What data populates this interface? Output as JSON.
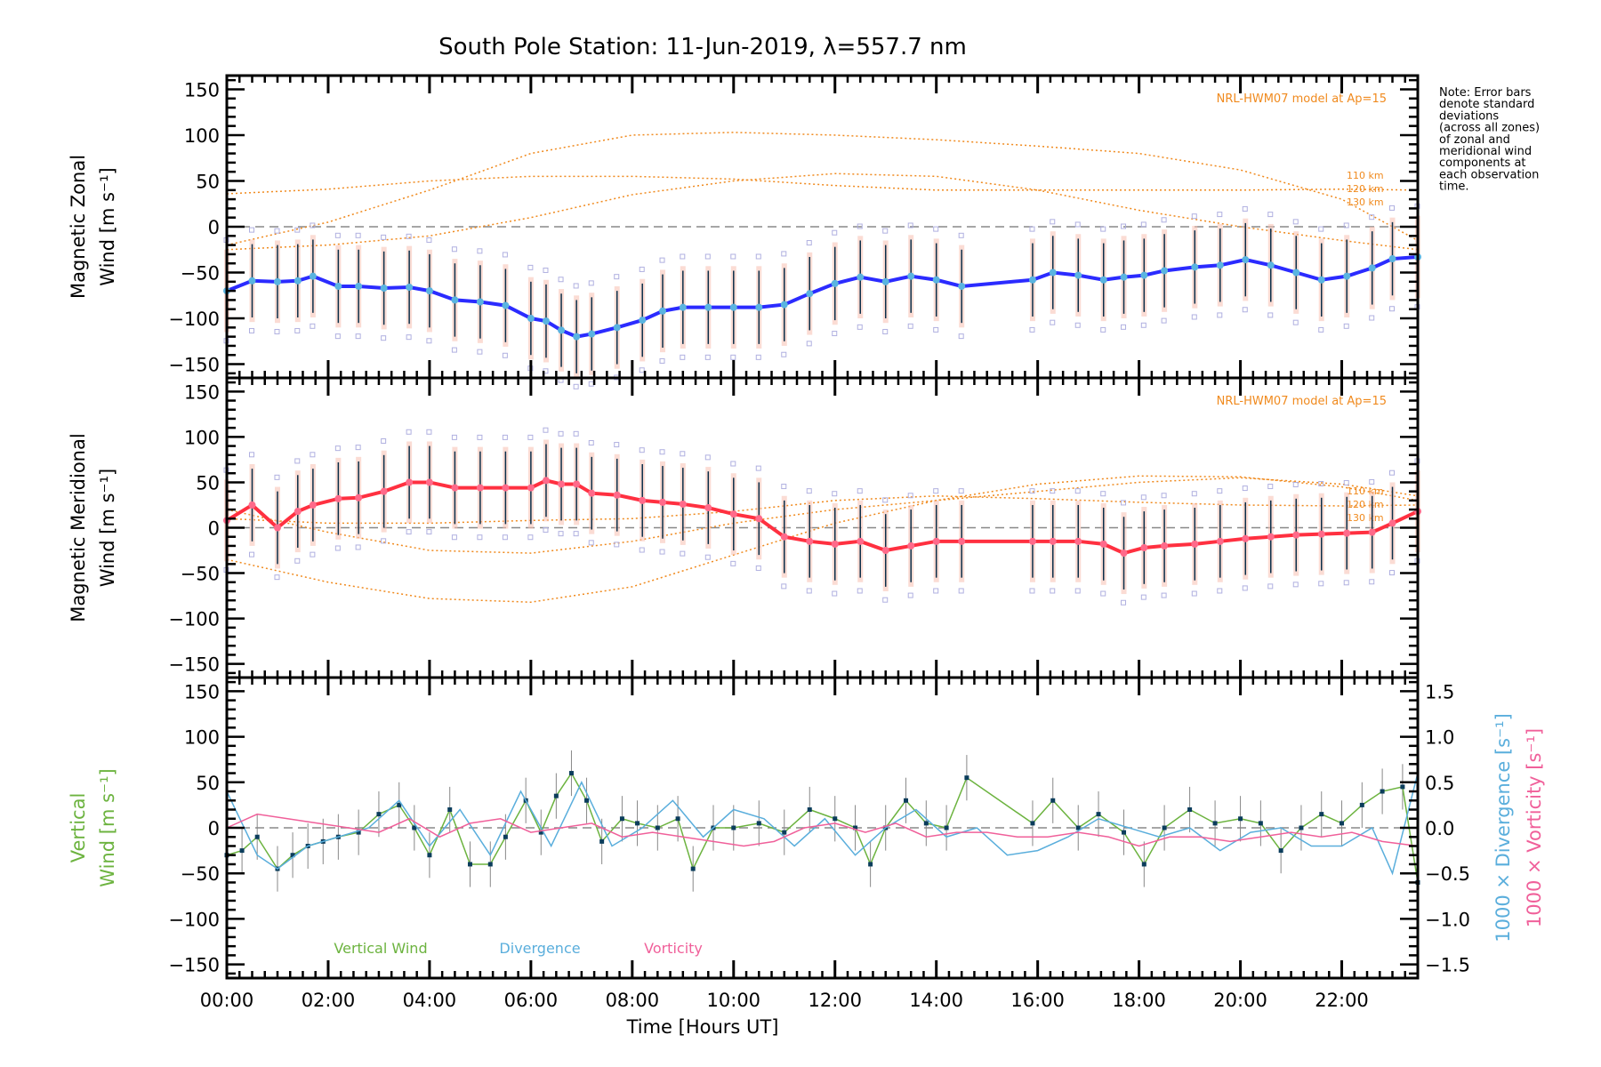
{
  "figure": {
    "title": "South Pole Station: 11-Jun-2019, λ=557.7 nm",
    "note_lines": [
      "Note: Error bars",
      "denote standard",
      "deviations",
      "(across all zones)",
      "of zonal and",
      "meridional wind",
      "components at",
      "each observation",
      "time."
    ],
    "xlabel": "Time [Hours UT]",
    "colors": {
      "zonal_line": "#2b2bff",
      "zonal_marker": "#5ab4e0",
      "meridional_line": "#ff3040",
      "meridional_marker": "#ff6a8a",
      "model": "#f08a1e",
      "vertical": "#6cb33f",
      "vertical_marker": "#0b3d5c",
      "divergence": "#5aaedc",
      "vorticity": "#f0609a",
      "errorbar": "#0b2f4a",
      "zone_boxes": "#b0b0e0",
      "zero_line": "#888888"
    }
  },
  "chart_data": [
    {
      "type": "line",
      "panel": "zonal",
      "title": "",
      "ylabel_lines": [
        "Magnetic Zonal",
        "Wind [m s⁻¹]"
      ],
      "xlabel": "",
      "xlim": [
        0,
        23.5
      ],
      "ylim": [
        -165,
        165
      ],
      "yticks": [
        150,
        100,
        50,
        0,
        -50,
        -100,
        -150
      ],
      "model_label": "NRL-HWM07 model at Ap=15",
      "model_altitudes": [
        "110 km",
        "120 km",
        "130 km"
      ],
      "model_series": [
        {
          "name": "110 km",
          "x": [
            0,
            2,
            4,
            6,
            8,
            10,
            12,
            14,
            16,
            18,
            20,
            22,
            23.5
          ],
          "y": [
            -20,
            5,
            40,
            80,
            100,
            103,
            100,
            95,
            88,
            80,
            62,
            30,
            -15
          ]
        },
        {
          "name": "120 km",
          "x": [
            0,
            2,
            4,
            6,
            8,
            10,
            12,
            14,
            16,
            18,
            20,
            22,
            23.5
          ],
          "y": [
            36,
            41,
            50,
            55,
            55,
            52,
            45,
            40,
            40,
            40,
            40,
            41,
            40
          ]
        },
        {
          "name": "130 km",
          "x": [
            0,
            2,
            4,
            6,
            8,
            10,
            12,
            14,
            16,
            18,
            20,
            22,
            23.5
          ],
          "y": [
            -25,
            -20,
            -10,
            10,
            35,
            50,
            58,
            55,
            40,
            18,
            0,
            -15,
            -25
          ]
        }
      ],
      "series": [
        {
          "name": "Zonal Wind",
          "x": [
            0,
            0.5,
            1.0,
            1.4,
            1.7,
            2.2,
            2.6,
            3.1,
            3.6,
            4.0,
            4.5,
            5.0,
            5.5,
            6.0,
            6.3,
            6.6,
            6.9,
            7.2,
            7.7,
            8.2,
            8.6,
            9.0,
            9.5,
            10.0,
            10.5,
            11.0,
            11.5,
            12.0,
            12.5,
            13.0,
            13.5,
            14.0,
            14.5,
            15.9,
            16.3,
            16.8,
            17.3,
            17.7,
            18.1,
            18.5,
            19.1,
            19.6,
            20.1,
            20.6,
            21.1,
            21.6,
            22.1,
            22.6,
            23.0,
            23.5
          ],
          "y": [
            -70,
            -59,
            -60,
            -59,
            -54,
            -65,
            -65,
            -67,
            -66,
            -70,
            -80,
            -82,
            -86,
            -100,
            -103,
            -113,
            -120,
            -117,
            -110,
            -102,
            -92,
            -88,
            -88,
            -88,
            -88,
            -85,
            -73,
            -62,
            -55,
            -60,
            -54,
            -58,
            -65,
            -58,
            -50,
            -53,
            -58,
            -55,
            -53,
            -48,
            -44,
            -42,
            -36,
            -42,
            -50,
            -58,
            -54,
            -45,
            -35,
            -33
          ]
        }
      ]
    },
    {
      "type": "line",
      "panel": "meridional",
      "title": "",
      "ylabel_lines": [
        "Magnetic Meridional",
        "Wind [m s⁻¹]"
      ],
      "xlabel": "",
      "xlim": [
        0,
        23.5
      ],
      "ylim": [
        -165,
        165
      ],
      "yticks": [
        150,
        100,
        50,
        0,
        -50,
        -100,
        -150
      ],
      "model_label": "NRL-HWM07 model at Ap=15",
      "model_altitudes": [
        "110 km",
        "120 km",
        "130 km"
      ],
      "model_series": [
        {
          "name": "110 km",
          "x": [
            0,
            2,
            4,
            6,
            8,
            10,
            12,
            14,
            16,
            18,
            20,
            22,
            23.5
          ],
          "y": [
            -35,
            -60,
            -78,
            -82,
            -65,
            -30,
            5,
            30,
            48,
            57,
            56,
            45,
            30
          ]
        },
        {
          "name": "120 km",
          "x": [
            0,
            2,
            4,
            6,
            8,
            10,
            12,
            14,
            16,
            18,
            20,
            22,
            23.5
          ],
          "y": [
            10,
            5,
            5,
            8,
            10,
            18,
            30,
            35,
            32,
            28,
            25,
            24,
            25
          ]
        },
        {
          "name": "130 km",
          "x": [
            0,
            2,
            4,
            6,
            8,
            10,
            12,
            14,
            16,
            18,
            20,
            22,
            23.5
          ],
          "y": [
            20,
            -5,
            -25,
            -28,
            -15,
            5,
            20,
            30,
            40,
            50,
            55,
            48,
            35
          ]
        }
      ],
      "series": [
        {
          "name": "Meridional Wind",
          "x": [
            0,
            0.5,
            1.0,
            1.4,
            1.7,
            2.2,
            2.6,
            3.1,
            3.6,
            4.0,
            4.5,
            5.0,
            5.5,
            6.0,
            6.3,
            6.6,
            6.9,
            7.2,
            7.7,
            8.2,
            8.6,
            9.0,
            9.5,
            10.0,
            10.5,
            11.0,
            11.5,
            12.0,
            12.5,
            13.0,
            13.5,
            14.0,
            14.5,
            15.9,
            16.3,
            16.8,
            17.3,
            17.7,
            18.1,
            18.5,
            19.1,
            19.6,
            20.1,
            20.6,
            21.1,
            21.6,
            22.1,
            22.6,
            23.0,
            23.5
          ],
          "y": [
            8,
            25,
            0,
            18,
            25,
            32,
            33,
            40,
            50,
            50,
            44,
            44,
            44,
            44,
            52,
            48,
            48,
            38,
            36,
            30,
            28,
            26,
            22,
            15,
            10,
            -10,
            -15,
            -18,
            -15,
            -25,
            -20,
            -15,
            -15,
            -15,
            -15,
            -15,
            -18,
            -28,
            -22,
            -20,
            -18,
            -15,
            -12,
            -10,
            -8,
            -7,
            -6,
            -5,
            5,
            18
          ]
        }
      ]
    },
    {
      "type": "line",
      "panel": "vertical",
      "title": "",
      "ylabel_lines": [
        "Vertical",
        "Wind [m s⁻¹]"
      ],
      "ylabel_right": [
        "1000 × Divergence [s⁻¹]",
        "1000 × Vorticity [s⁻¹]"
      ],
      "xlabel": "Time [Hours UT]",
      "xlim": [
        0,
        23.5
      ],
      "xticks": [
        "00:00",
        "02:00",
        "04:00",
        "06:00",
        "08:00",
        "10:00",
        "12:00",
        "14:00",
        "16:00",
        "18:00",
        "20:00",
        "22:00"
      ],
      "ylim": [
        -165,
        165
      ],
      "yticks": [
        150,
        100,
        50,
        0,
        -50,
        -100,
        -150
      ],
      "ylim_right": [
        -1.65,
        1.65
      ],
      "yticks_right": [
        "1.5",
        "1.0",
        "0.5",
        "0.0",
        "-0.5",
        "-1.0",
        "-1.5"
      ],
      "legend": [
        "Vertical Wind",
        "Divergence",
        "Vorticity"
      ],
      "legend_position": "bottom-left",
      "series": [
        {
          "name": "Vertical Wind",
          "x": [
            0,
            0.3,
            0.6,
            1.0,
            1.3,
            1.6,
            1.9,
            2.2,
            2.6,
            3.0,
            3.4,
            3.7,
            4.0,
            4.4,
            4.8,
            5.2,
            5.5,
            5.9,
            6.2,
            6.5,
            6.8,
            7.1,
            7.4,
            7.8,
            8.1,
            8.5,
            8.9,
            9.2,
            9.6,
            10.0,
            10.5,
            11.0,
            11.5,
            12.0,
            12.4,
            12.7,
            13.0,
            13.4,
            13.8,
            14.2,
            14.6,
            15.9,
            16.3,
            16.8,
            17.2,
            17.7,
            18.1,
            18.5,
            19.0,
            19.5,
            20.0,
            20.4,
            20.8,
            21.2,
            21.6,
            22.0,
            22.4,
            22.8,
            23.2,
            23.5
          ],
          "y": [
            -30,
            -25,
            -10,
            -45,
            -30,
            -20,
            -15,
            -10,
            -5,
            15,
            25,
            0,
            -30,
            20,
            -40,
            -40,
            -10,
            30,
            -5,
            35,
            60,
            30,
            -15,
            10,
            5,
            0,
            10,
            -45,
            0,
            0,
            5,
            -5,
            20,
            10,
            0,
            -40,
            0,
            30,
            5,
            0,
            55,
            5,
            30,
            0,
            15,
            -5,
            -40,
            0,
            20,
            5,
            10,
            5,
            -25,
            0,
            15,
            5,
            25,
            40,
            45,
            -60
          ]
        },
        {
          "name": "Divergence",
          "axis": "right",
          "x": [
            0,
            0.6,
            1.0,
            1.6,
            2.2,
            2.8,
            3.4,
            4.0,
            4.6,
            5.2,
            5.8,
            6.4,
            7.0,
            7.6,
            8.2,
            8.8,
            9.4,
            10.0,
            10.6,
            11.2,
            11.8,
            12.4,
            13.0,
            13.6,
            14.2,
            14.8,
            15.4,
            16.0,
            16.6,
            17.2,
            17.8,
            18.4,
            19.0,
            19.6,
            20.2,
            20.8,
            21.4,
            22.0,
            22.6,
            23.0,
            23.5
          ],
          "y": [
            0.4,
            -0.3,
            -0.45,
            -0.2,
            -0.1,
            0.0,
            0.3,
            -0.2,
            0.2,
            -0.3,
            0.4,
            -0.2,
            0.5,
            -0.2,
            0.0,
            0.3,
            -0.1,
            0.2,
            0.1,
            -0.2,
            0.1,
            -0.3,
            0.0,
            0.2,
            -0.1,
            0.0,
            -0.3,
            -0.25,
            -0.1,
            0.1,
            0.0,
            -0.1,
            0.0,
            -0.25,
            -0.05,
            0.0,
            -0.2,
            -0.2,
            0.0,
            -0.5,
            0.6
          ]
        },
        {
          "name": "Vorticity",
          "axis": "right",
          "x": [
            0,
            0.6,
            1.2,
            1.8,
            2.4,
            3.0,
            3.6,
            4.2,
            4.8,
            5.4,
            6.0,
            6.6,
            7.2,
            7.8,
            8.4,
            9.0,
            9.6,
            10.2,
            10.8,
            11.4,
            12.0,
            12.6,
            13.2,
            13.8,
            14.4,
            15.0,
            15.6,
            16.2,
            16.8,
            17.4,
            18.0,
            18.6,
            19.2,
            19.8,
            20.4,
            21.0,
            21.6,
            22.2,
            22.8,
            23.5
          ],
          "y": [
            0.0,
            0.15,
            0.1,
            0.05,
            0.0,
            -0.05,
            0.1,
            -0.1,
            0.05,
            0.1,
            -0.05,
            0.0,
            0.05,
            -0.1,
            -0.05,
            -0.1,
            -0.15,
            -0.2,
            -0.15,
            0.0,
            0.05,
            -0.05,
            0.05,
            -0.1,
            -0.05,
            -0.05,
            -0.1,
            -0.1,
            -0.05,
            -0.1,
            -0.2,
            -0.1,
            -0.1,
            -0.15,
            -0.1,
            -0.05,
            -0.1,
            -0.05,
            -0.15,
            -0.2
          ]
        }
      ]
    }
  ]
}
